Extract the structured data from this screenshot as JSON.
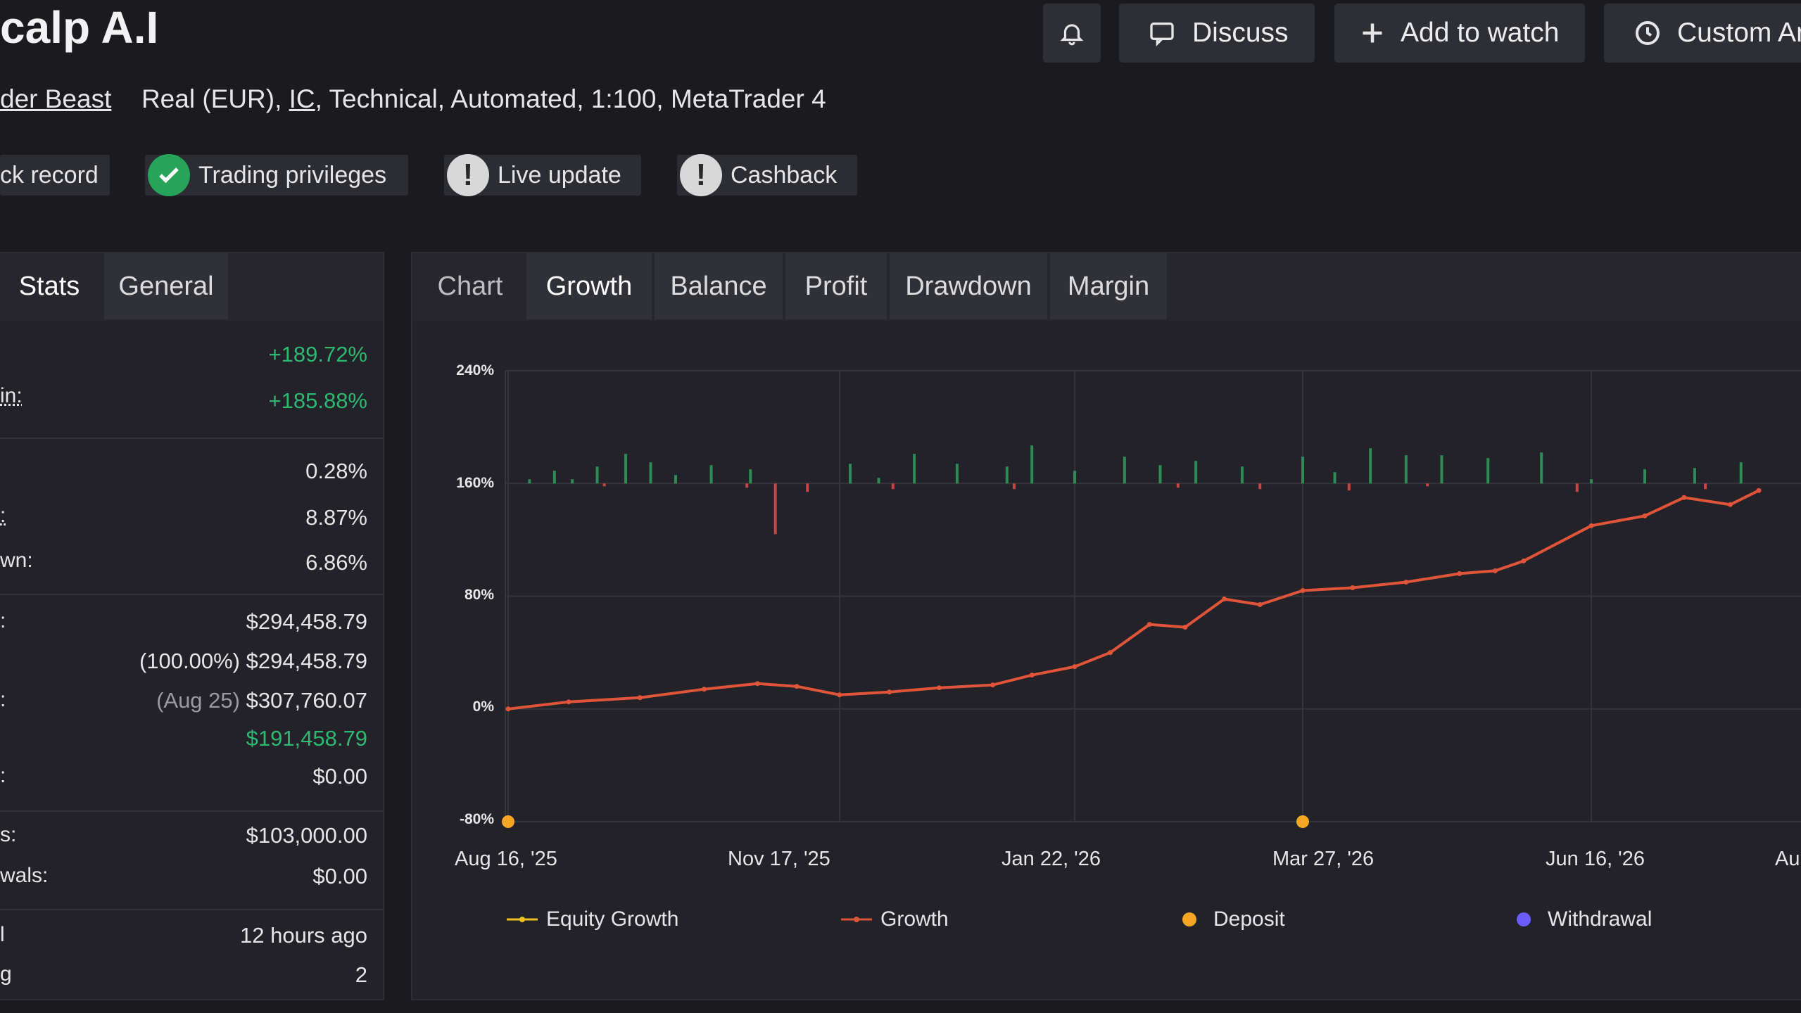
{
  "header": {
    "title": "calp A.I",
    "discuss_label": "Discuss",
    "add_watch_label": "Add to watch",
    "custom_label": "Custom An"
  },
  "account": {
    "owner": "der Beast",
    "details_pre": "Real (EUR),",
    "broker": "IC",
    "details_post": ", Technical, Automated, 1:100, MetaTrader 4"
  },
  "badges": {
    "track": "ck record",
    "privileges": "Trading privileges",
    "live": "Live update",
    "cashback": "Cashback"
  },
  "stats_panel": {
    "tabs": [
      "Stats",
      "General"
    ],
    "rows": [
      {
        "label": "",
        "value": "+189.72%"
      },
      {
        "label": "in:",
        "value": "+185.88%"
      },
      {
        "label": "",
        "value": "0.28%"
      },
      {
        "label": ":",
        "value": "8.87%"
      },
      {
        "label": "wn:",
        "value": "6.86%"
      },
      {
        "label": ":",
        "value": "$294,458.79"
      },
      {
        "label": "",
        "value_note": "(100.00%)",
        "value": "$294,458.79"
      },
      {
        "label": ":",
        "value_note": "(Aug 25)",
        "value": "$307,760.07"
      },
      {
        "label": "",
        "value": "$191,458.79"
      },
      {
        "label": ":",
        "value": "$0.00"
      },
      {
        "label": "s:",
        "value": "$103,000.00"
      },
      {
        "label": "wals:",
        "value": "$0.00"
      },
      {
        "label": "l",
        "value": "12 hours ago"
      },
      {
        "label": "g",
        "value": "2"
      }
    ]
  },
  "chart_panel": {
    "tabs": [
      "Chart",
      "Growth",
      "Balance",
      "Profit",
      "Drawdown",
      "Margin"
    ],
    "active_tab": "Growth"
  },
  "chart_data": {
    "type": "line",
    "y_ticks": [
      "240%",
      "160%",
      "80%",
      "0%",
      "-80%"
    ],
    "ylim": [
      -80,
      240
    ],
    "x_ticks": [
      "Aug 16, '25",
      "Nov 17, '25",
      "Jan 22, '26",
      "Mar 27, '26",
      "Jun 16, '26",
      "Au"
    ],
    "grid": true,
    "legend": [
      {
        "name": "Equity Growth",
        "color": "#f0c020"
      },
      {
        "name": "Growth",
        "color": "#e0553a"
      },
      {
        "name": "Deposit",
        "color": "#f5a623"
      },
      {
        "name": "Withdrawal",
        "color": "#6a5cff"
      }
    ],
    "legend_position": "bottom",
    "series": [
      {
        "name": "Growth",
        "color": "#e0553a",
        "points": [
          [
            "Aug 16, '25",
            0
          ],
          [
            "Sep 2, '25",
            5
          ],
          [
            "Sep 22, '25",
            8
          ],
          [
            "Oct 10, '25",
            14
          ],
          [
            "Oct 25, '25",
            18
          ],
          [
            "Nov 5, '25",
            16
          ],
          [
            "Nov 17, '25",
            10
          ],
          [
            "Dec 1, '25",
            12
          ],
          [
            "Dec 15, '25",
            15
          ],
          [
            "Dec 30, '25",
            17
          ],
          [
            "Jan 10, '26",
            24
          ],
          [
            "Jan 22, '26",
            30
          ],
          [
            "Feb 1, '26",
            40
          ],
          [
            "Feb 12, '26",
            60
          ],
          [
            "Feb 22, '26",
            58
          ],
          [
            "Mar 5, '26",
            78
          ],
          [
            "Mar 15, '26",
            74
          ],
          [
            "Mar 27, '26",
            84
          ],
          [
            "Apr 10, '26",
            86
          ],
          [
            "Apr 25, '26",
            90
          ],
          [
            "May 10, '26",
            96
          ],
          [
            "May 20, '26",
            98
          ],
          [
            "May 28, '26",
            105
          ],
          [
            "Jun 16, '26",
            130
          ],
          [
            "Jul 1, '26",
            137
          ],
          [
            "Jul 12, '26",
            150
          ],
          [
            "Jul 25, '26",
            145
          ],
          [
            "Aug 2, '26",
            155
          ]
        ]
      },
      {
        "name": "Daily",
        "color": "#2e8b57",
        "positive": [
          [
            "Aug 22, '25",
            3
          ],
          [
            "Aug 29, '25",
            9
          ],
          [
            "Sep 3, '25",
            3
          ],
          [
            "Sep 10, '25",
            12
          ],
          [
            "Sep 18, '25",
            21
          ],
          [
            "Sep 25, '25",
            15
          ],
          [
            "Oct 2, '25",
            6
          ],
          [
            "Oct 12, '25",
            13
          ],
          [
            "Oct 23, '25",
            10
          ],
          [
            "Nov 20, '25",
            14
          ],
          [
            "Nov 28, '25",
            4
          ],
          [
            "Dec 8, '25",
            21
          ],
          [
            "Dec 20, '25",
            14
          ],
          [
            "Jan 3, '26",
            12
          ],
          [
            "Jan 10, '26",
            27
          ],
          [
            "Jan 22, '26",
            9
          ],
          [
            "Feb 5, '26",
            19
          ],
          [
            "Feb 15, '26",
            13
          ],
          [
            "Feb 25, '26",
            16
          ],
          [
            "Mar 10, '26",
            12
          ],
          [
            "Mar 27, '26",
            19
          ],
          [
            "Apr 5, '26",
            8
          ],
          [
            "Apr 15, '26",
            25
          ],
          [
            "Apr 25, '26",
            20
          ],
          [
            "May 5, '26",
            20
          ],
          [
            "May 18, '26",
            18
          ],
          [
            "Jun 2, '26",
            22
          ],
          [
            "Jun 16, '26",
            3
          ],
          [
            "Jul 1, '26",
            10
          ],
          [
            "Jul 15, '26",
            11
          ],
          [
            "Jul 28, '26",
            15
          ]
        ],
        "negative": [
          [
            "Sep 12, '25",
            -2
          ],
          [
            "Oct 22, '25",
            -3
          ],
          [
            "Oct 30, '25",
            -36
          ],
          [
            "Nov 8, '25",
            -6
          ],
          [
            "Dec 2, '25",
            -4
          ],
          [
            "Jan 5, '26",
            -4
          ],
          [
            "Feb 20, '26",
            -3
          ],
          [
            "Mar 15, '26",
            -4
          ],
          [
            "Apr 9, '26",
            -5
          ],
          [
            "May 1, '26",
            -2
          ],
          [
            "Jun 12, '26",
            -6
          ],
          [
            "Jul 18, '26",
            -4
          ]
        ]
      }
    ],
    "deposits": [
      [
        "Aug 16, '25",
        -80
      ],
      [
        "Mar 27, '26",
        -80
      ]
    ]
  }
}
